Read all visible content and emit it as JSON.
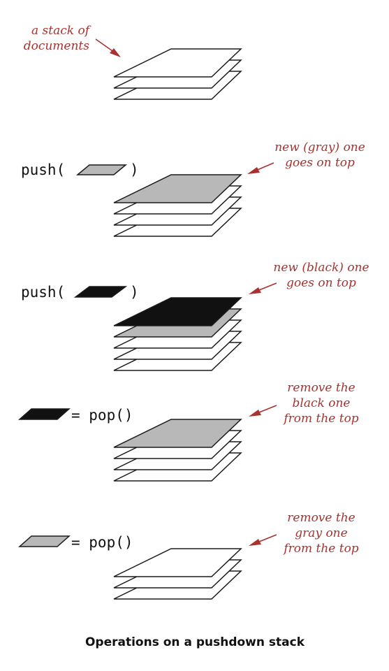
{
  "colors": {
    "annotation": "#a8322f",
    "paper_white": "#ffffff",
    "paper_gray": "#b8b8b8",
    "paper_black": "#111111",
    "outline": "#1a1a1a"
  },
  "caption": "Operations on a pushdown stack",
  "panels": [
    {
      "operation": {
        "prefix": "",
        "suffix": "",
        "paper": ""
      },
      "annotation": [
        "a stack of",
        "documents"
      ],
      "stack": [
        "white",
        "white",
        "white"
      ]
    },
    {
      "operation": {
        "prefix": "push(",
        "suffix": ")",
        "paper": "gray"
      },
      "annotation": [
        "new (gray) one",
        "goes on top"
      ],
      "stack": [
        "white",
        "white",
        "white",
        "gray"
      ]
    },
    {
      "operation": {
        "prefix": "push(",
        "suffix": ")",
        "paper": "black"
      },
      "annotation": [
        "new (black) one",
        "goes on top"
      ],
      "stack": [
        "white",
        "white",
        "white",
        "gray",
        "black"
      ]
    },
    {
      "operation": {
        "prefix": "",
        "suffix": "= pop()",
        "paper": "black"
      },
      "annotation": [
        "remove the",
        "black one",
        "from the top"
      ],
      "stack": [
        "white",
        "white",
        "white",
        "gray"
      ]
    },
    {
      "operation": {
        "prefix": "",
        "suffix": "= pop()",
        "paper": "gray"
      },
      "annotation": [
        "remove the",
        "gray one",
        "from the top"
      ],
      "stack": [
        "white",
        "white",
        "white"
      ]
    }
  ]
}
